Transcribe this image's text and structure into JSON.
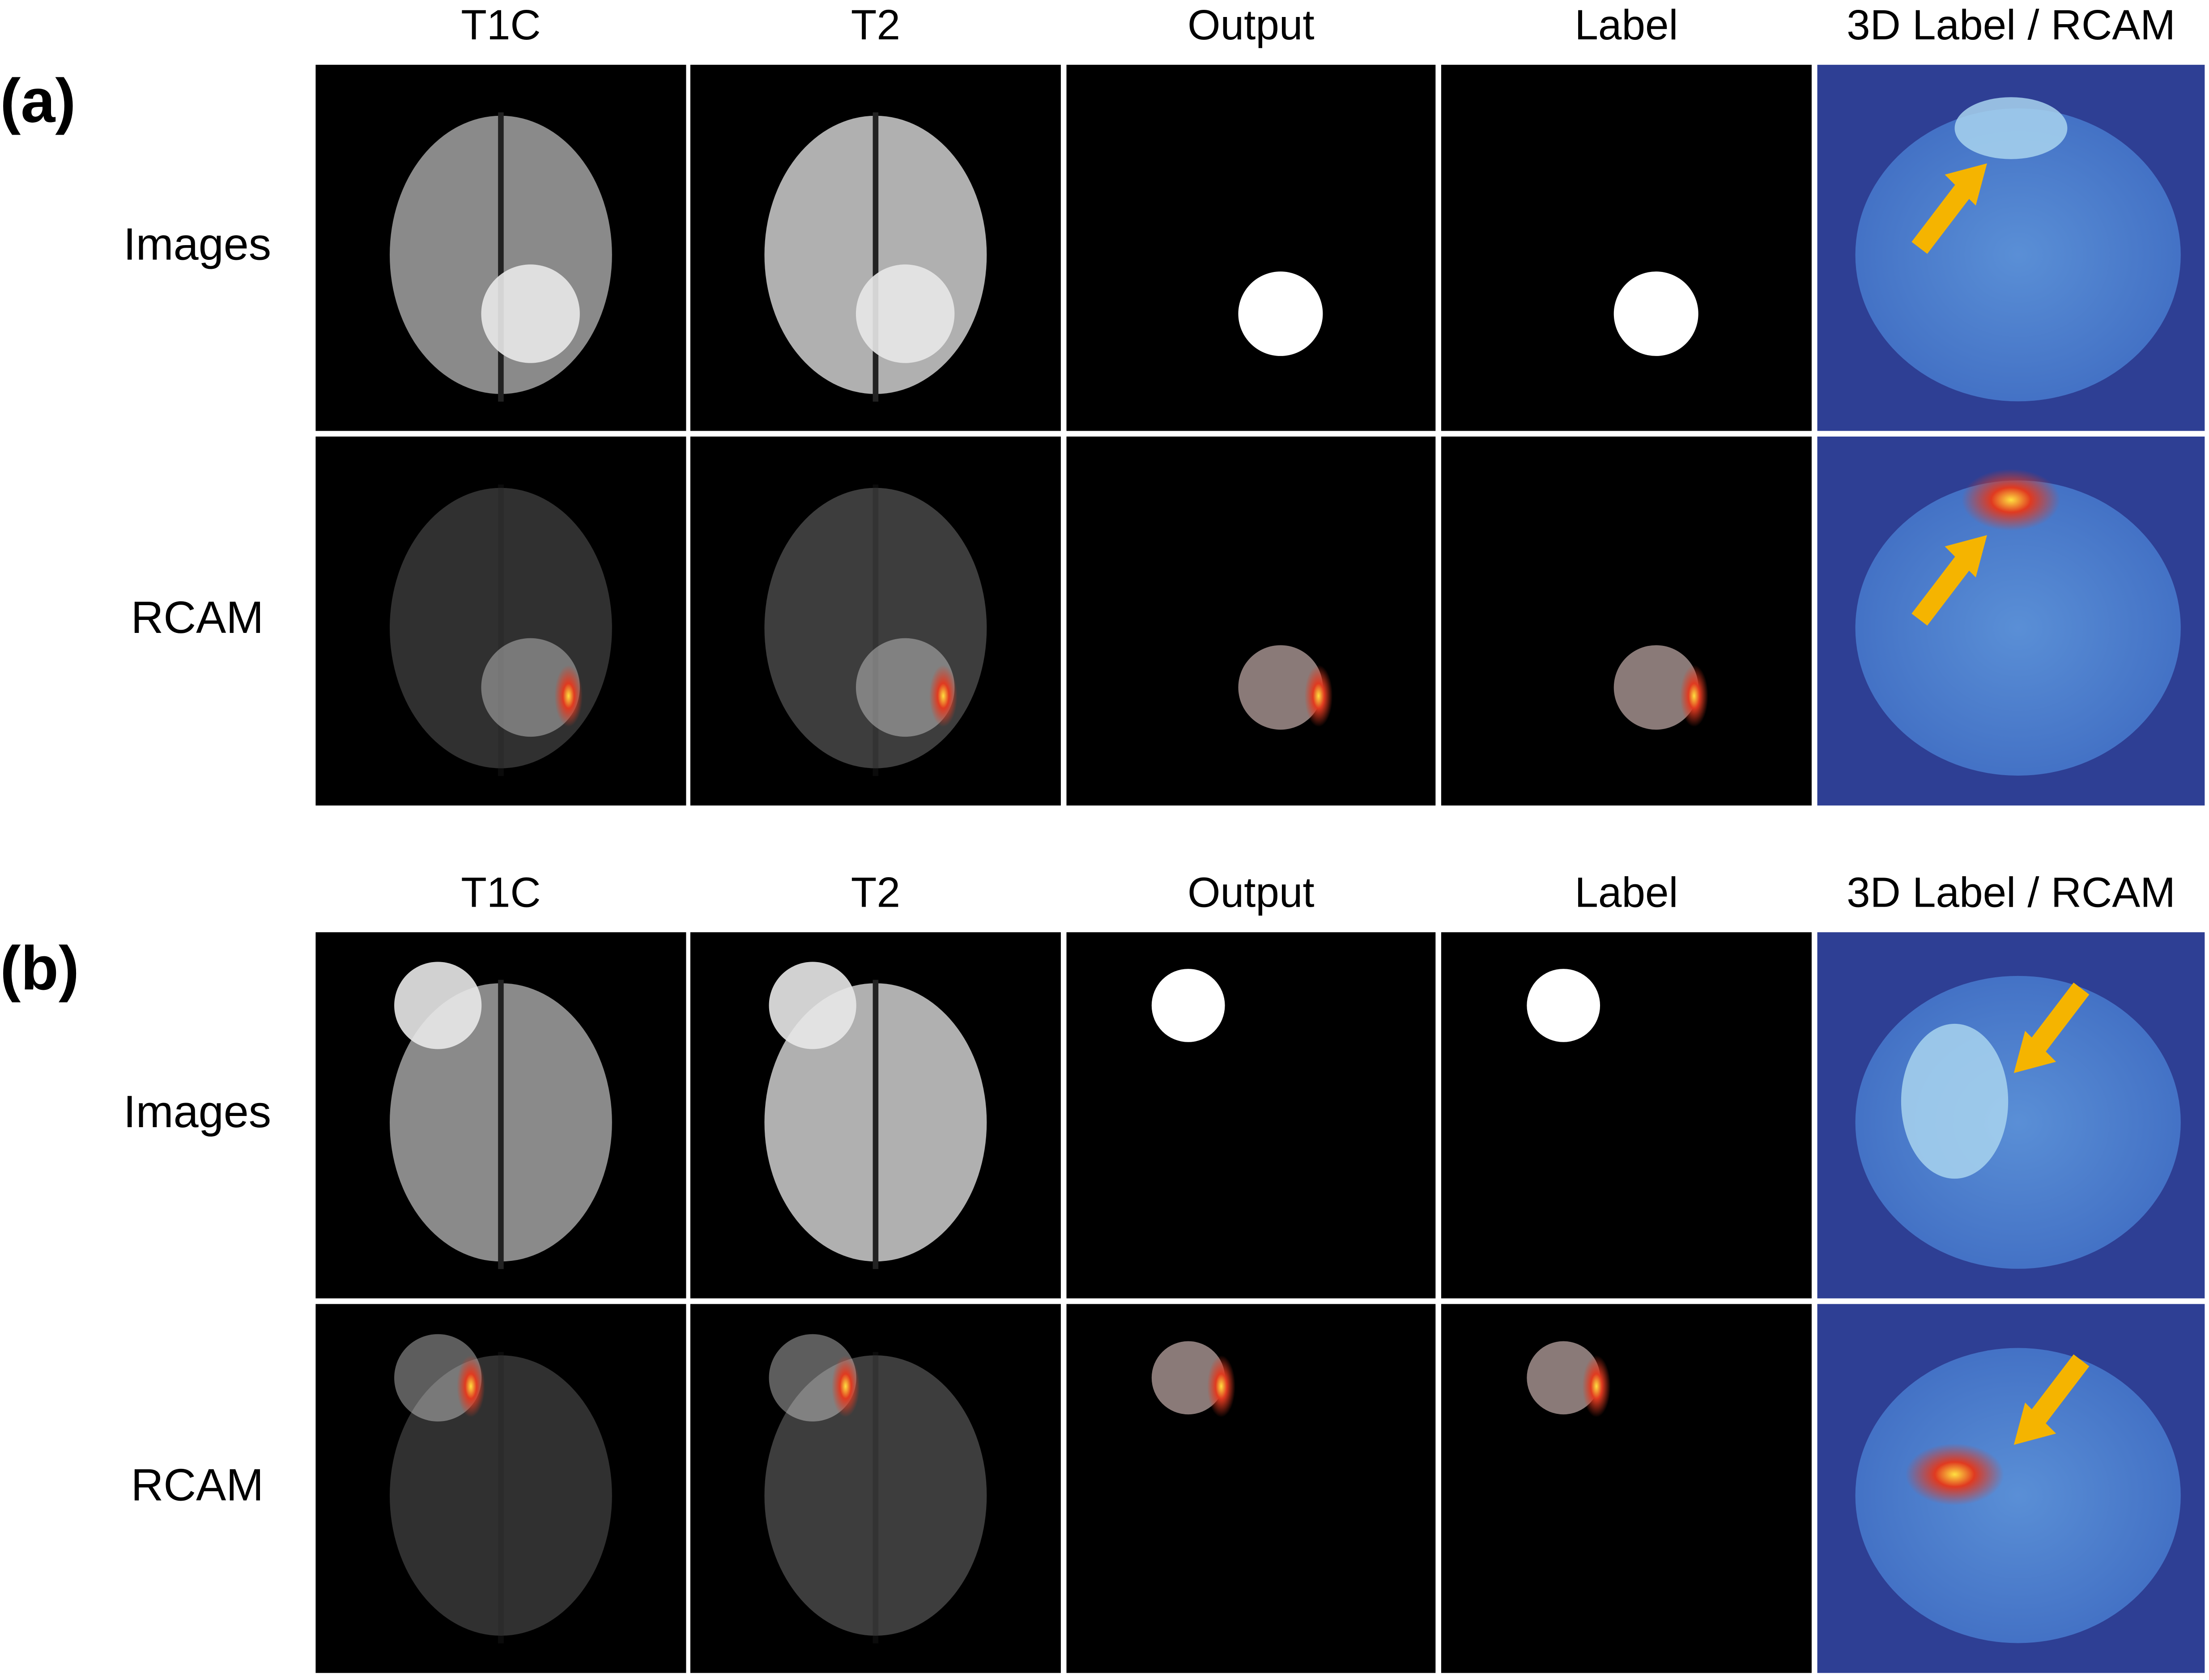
{
  "panels": [
    {
      "label": "(a)",
      "columns": [
        "T1C",
        "T2",
        "Output",
        "Label",
        "3D Label / RCAM"
      ],
      "rows": [
        "Images",
        "RCAM"
      ]
    },
    {
      "label": "(b)",
      "columns": [
        "T1C",
        "T2",
        "Output",
        "Label",
        "3D Label / RCAM"
      ],
      "rows": [
        "Images",
        "RCAM"
      ]
    }
  ]
}
